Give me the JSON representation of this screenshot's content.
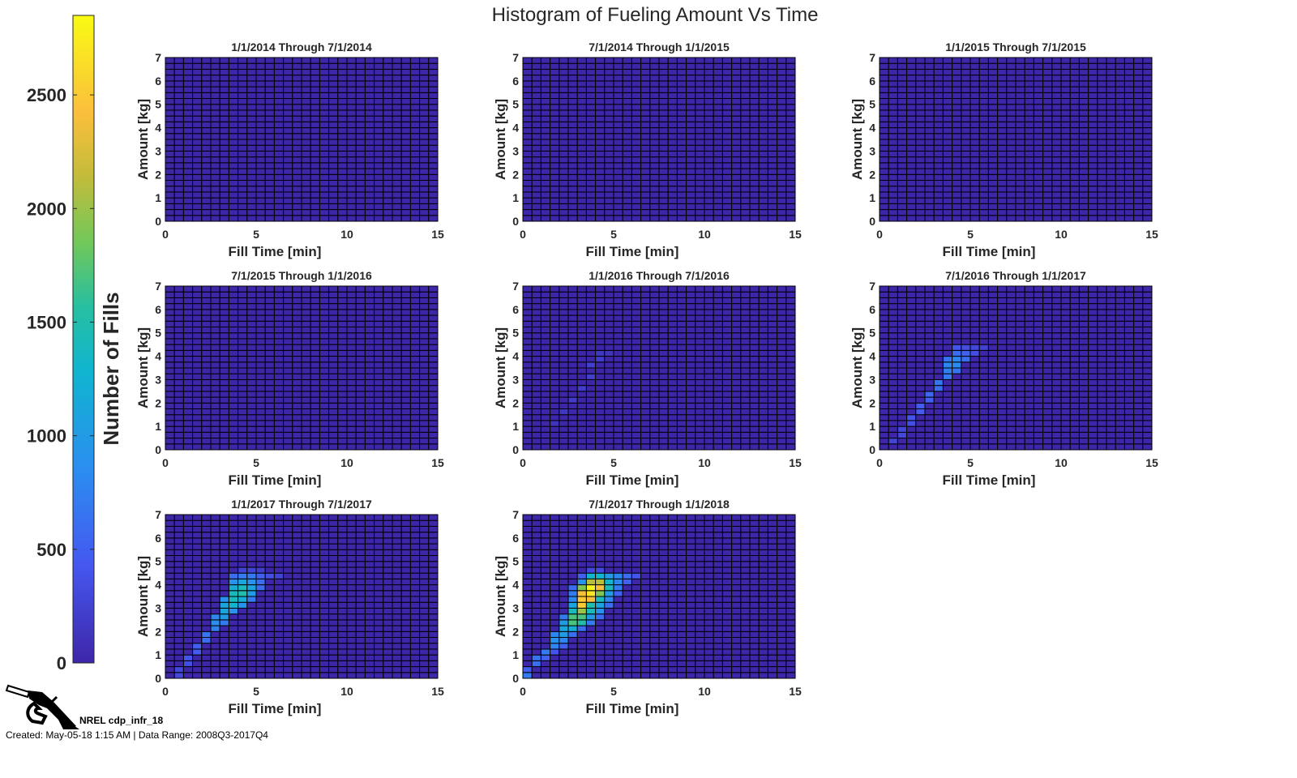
{
  "title": "Histogram of Fueling Amount Vs Time",
  "colorbar": {
    "label": "Number of Fills",
    "range": [
      0,
      2850
    ],
    "ticks": [
      0,
      500,
      1000,
      1500,
      2000,
      2500
    ],
    "colormap": "parula"
  },
  "logo_label": "NREL cdp_infr_18",
  "footer": "Created: May-05-18  1:15 AM | Data Range: 2008Q3-2017Q4",
  "chart_data": {
    "type": "heatmap",
    "xlabel": "Fill Time [min]",
    "ylabel": "Amount [kg]",
    "xlim": [
      0,
      15
    ],
    "ylim": [
      0,
      7
    ],
    "xticks": [
      0,
      5,
      10,
      15
    ],
    "yticks": [
      0,
      1,
      2,
      3,
      4,
      5,
      6,
      7
    ],
    "x_bin_width": 0.5,
    "y_bin_width": 0.25,
    "cell_format": [
      "fill_time_bin_start",
      "amount_bin_start",
      "count"
    ],
    "panels": [
      {
        "title": "1/1/2014 Through 7/1/2014",
        "cells": []
      },
      {
        "title": "7/1/2014 Through 1/1/2015",
        "cells": []
      },
      {
        "title": "1/1/2015 Through 7/1/2015",
        "cells": []
      },
      {
        "title": "7/1/2015 Through 1/1/2016",
        "cells": []
      },
      {
        "title": "1/1/2016 Through 7/1/2016",
        "cells": [
          [
            1.5,
            1,
            120
          ],
          [
            2,
            1.5,
            150
          ],
          [
            2.5,
            2,
            180
          ],
          [
            3,
            2.5,
            200
          ],
          [
            3.5,
            3,
            220
          ],
          [
            3.5,
            3.5,
            220
          ],
          [
            4,
            3.75,
            200
          ],
          [
            4,
            4,
            150
          ],
          [
            4.5,
            4,
            120
          ]
        ]
      },
      {
        "title": "7/1/2016 Through 1/1/2017",
        "cells": [
          [
            0.5,
            0.25,
            250
          ],
          [
            1,
            0.5,
            300
          ],
          [
            1,
            0.75,
            300
          ],
          [
            1.5,
            1,
            350
          ],
          [
            1.5,
            1.25,
            400
          ],
          [
            2,
            1.5,
            450
          ],
          [
            2,
            1.75,
            450
          ],
          [
            2.5,
            2,
            500
          ],
          [
            2.5,
            2.25,
            550
          ],
          [
            3,
            2.5,
            600
          ],
          [
            3,
            2.75,
            650
          ],
          [
            3.5,
            3,
            700
          ],
          [
            3.5,
            3.25,
            750
          ],
          [
            4,
            3.25,
            650
          ],
          [
            3.5,
            3.5,
            800
          ],
          [
            4,
            3.5,
            850
          ],
          [
            4,
            3.75,
            800
          ],
          [
            4.5,
            3.75,
            600
          ],
          [
            3.5,
            3.75,
            650
          ],
          [
            4,
            4,
            600
          ],
          [
            4.5,
            4,
            500
          ],
          [
            5,
            4,
            350
          ],
          [
            4,
            4.25,
            400
          ],
          [
            4.5,
            4.25,
            350
          ],
          [
            5,
            4.25,
            300
          ],
          [
            5.5,
            4.25,
            250
          ]
        ]
      },
      {
        "title": "1/1/2017 Through 7/1/2017",
        "cells": [
          [
            0.5,
            0,
            300
          ],
          [
            0.5,
            0.25,
            300
          ],
          [
            1,
            0.5,
            350
          ],
          [
            1,
            0.75,
            400
          ],
          [
            1.5,
            1,
            450
          ],
          [
            1.5,
            1.25,
            500
          ],
          [
            2,
            1.5,
            600
          ],
          [
            2,
            1.75,
            650
          ],
          [
            2.5,
            2,
            750
          ],
          [
            2.5,
            2.25,
            850
          ],
          [
            3,
            2.25,
            700
          ],
          [
            2.5,
            2.5,
            800
          ],
          [
            3,
            2.5,
            1000
          ],
          [
            3,
            2.75,
            1100
          ],
          [
            3.5,
            2.75,
            900
          ],
          [
            3,
            3,
            1100
          ],
          [
            3.5,
            3,
            1300
          ],
          [
            4,
            3,
            900
          ],
          [
            3,
            3.25,
            900
          ],
          [
            3.5,
            3.25,
            1400
          ],
          [
            4,
            3.25,
            1200
          ],
          [
            4.5,
            3.25,
            700
          ],
          [
            3.5,
            3.5,
            1400
          ],
          [
            4,
            3.5,
            1500
          ],
          [
            4.5,
            3.5,
            1000
          ],
          [
            3.5,
            3.75,
            1200
          ],
          [
            4,
            3.75,
            1400
          ],
          [
            4.5,
            3.75,
            1100
          ],
          [
            5,
            3.75,
            600
          ],
          [
            3.5,
            4,
            900
          ],
          [
            4,
            4,
            1100
          ],
          [
            4.5,
            4,
            900
          ],
          [
            5,
            4,
            600
          ],
          [
            3.5,
            4.25,
            600
          ],
          [
            4,
            4.25,
            700
          ],
          [
            4.5,
            4.25,
            700
          ],
          [
            5,
            4.25,
            500
          ],
          [
            5.5,
            4.25,
            350
          ],
          [
            6,
            4.25,
            250
          ],
          [
            4,
            4.5,
            250
          ],
          [
            4.5,
            4.5,
            250
          ],
          [
            5,
            4.5,
            200
          ]
        ]
      },
      {
        "title": "7/1/2017 Through 1/1/2018",
        "cells": [
          [
            0,
            0,
            700
          ],
          [
            0,
            0.25,
            500
          ],
          [
            0.5,
            0.5,
            600
          ],
          [
            0.5,
            0.75,
            650
          ],
          [
            1,
            0.75,
            500
          ],
          [
            1,
            1,
            700
          ],
          [
            1.5,
            1,
            400
          ],
          [
            1.5,
            1.25,
            800
          ],
          [
            2,
            1.25,
            500
          ],
          [
            1.5,
            1.5,
            900
          ],
          [
            2,
            1.5,
            800
          ],
          [
            1.5,
            1.75,
            800
          ],
          [
            2,
            1.75,
            1000
          ],
          [
            2.5,
            1.75,
            600
          ],
          [
            2,
            2,
            1100
          ],
          [
            2.5,
            2,
            1200
          ],
          [
            3,
            2,
            600
          ],
          [
            2,
            2.25,
            1000
          ],
          [
            2.5,
            2.25,
            1700
          ],
          [
            3,
            2.25,
            1500
          ],
          [
            3.5,
            2.25,
            700
          ],
          [
            2,
            2.5,
            700
          ],
          [
            2.5,
            2.5,
            1700
          ],
          [
            3,
            2.5,
            1700
          ],
          [
            3.5,
            2.5,
            1000
          ],
          [
            4,
            2.5,
            600
          ],
          [
            2.5,
            2.75,
            1400
          ],
          [
            3,
            2.75,
            2000
          ],
          [
            3.5,
            2.75,
            1400
          ],
          [
            4,
            2.75,
            900
          ],
          [
            2.5,
            3,
            1100
          ],
          [
            3,
            3,
            2500
          ],
          [
            3.5,
            3,
            1500
          ],
          [
            4,
            3,
            1100
          ],
          [
            4.5,
            3,
            600
          ],
          [
            2.5,
            3.25,
            800
          ],
          [
            3,
            3.25,
            2500
          ],
          [
            3.5,
            3.25,
            2400
          ],
          [
            4,
            3.25,
            1400
          ],
          [
            4.5,
            3.25,
            800
          ],
          [
            2.5,
            3.5,
            700
          ],
          [
            3,
            3.5,
            2400
          ],
          [
            3.5,
            3.5,
            2700
          ],
          [
            4,
            3.5,
            1900
          ],
          [
            4.5,
            3.5,
            1000
          ],
          [
            5,
            3.5,
            500
          ],
          [
            2.5,
            3.75,
            600
          ],
          [
            3,
            3.75,
            1900
          ],
          [
            3.5,
            3.75,
            2800
          ],
          [
            4,
            3.75,
            2400
          ],
          [
            4.5,
            3.75,
            1400
          ],
          [
            5,
            3.75,
            700
          ],
          [
            3,
            4,
            900
          ],
          [
            3.5,
            4,
            2100
          ],
          [
            4,
            4,
            2100
          ],
          [
            4.5,
            4,
            1300
          ],
          [
            5,
            4,
            800
          ],
          [
            5.5,
            4,
            500
          ],
          [
            3,
            4.25,
            500
          ],
          [
            3.5,
            4.25,
            1300
          ],
          [
            4,
            4.25,
            1300
          ],
          [
            4.5,
            4.25,
            1000
          ],
          [
            5,
            4.25,
            800
          ],
          [
            5.5,
            4.25,
            600
          ],
          [
            6,
            4.25,
            400
          ],
          [
            3.5,
            4.5,
            300
          ],
          [
            4,
            4.5,
            300
          ]
        ]
      }
    ]
  }
}
